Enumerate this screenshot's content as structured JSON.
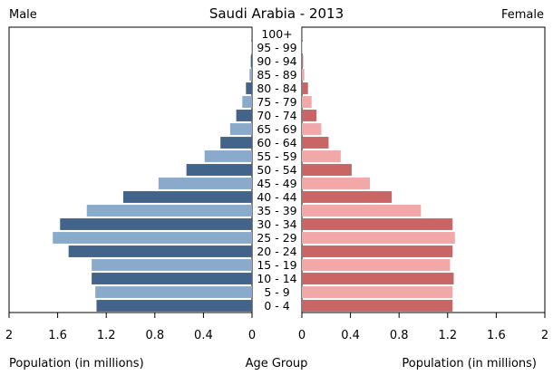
{
  "chart_data": {
    "type": "bar",
    "title": "Saudi Arabia - 2013",
    "left_label": "Male",
    "right_label": "Female",
    "xlabel_left": "Population (in millions)",
    "xlabel_center": "Age Group",
    "xlabel_right": "Population (in millions)",
    "xlim": [
      0,
      2
    ],
    "x_ticks": [
      "2",
      "1.6",
      "1.2",
      "0.8",
      "0.4",
      "0"
    ],
    "x_ticks_right": [
      "0",
      "0.4",
      "0.8",
      "1.2",
      "1.6",
      "2"
    ],
    "tick_values": [
      0,
      0.4,
      0.8,
      1.2,
      1.6,
      2
    ],
    "categories": [
      "0 - 4",
      "5 - 9",
      "10 - 14",
      "15 - 19",
      "20 - 24",
      "25 - 29",
      "30 - 34",
      "35 - 39",
      "40 - 44",
      "45 - 49",
      "50 - 54",
      "55 - 59",
      "60 - 64",
      "65 - 69",
      "70 - 74",
      "75 - 79",
      "80 - 84",
      "85 - 89",
      "90 - 94",
      "95 - 99",
      "100+"
    ],
    "series": [
      {
        "name": "Male",
        "values": [
          1.28,
          1.29,
          1.32,
          1.32,
          1.51,
          1.64,
          1.58,
          1.36,
          1.06,
          0.77,
          0.54,
          0.39,
          0.26,
          0.18,
          0.13,
          0.08,
          0.05,
          0.02,
          0.01,
          0.005,
          0.002
        ]
      },
      {
        "name": "Female",
        "values": [
          1.24,
          1.24,
          1.25,
          1.22,
          1.24,
          1.26,
          1.24,
          0.98,
          0.74,
          0.56,
          0.41,
          0.32,
          0.22,
          0.16,
          0.12,
          0.08,
          0.05,
          0.02,
          0.01,
          0.005,
          0.002
        ]
      }
    ],
    "colors": {
      "male_dark": "#43648a",
      "male_light": "#8aaacb",
      "female_dark": "#c96565",
      "female_light": "#f2a8a8",
      "axis": "#000000"
    }
  }
}
